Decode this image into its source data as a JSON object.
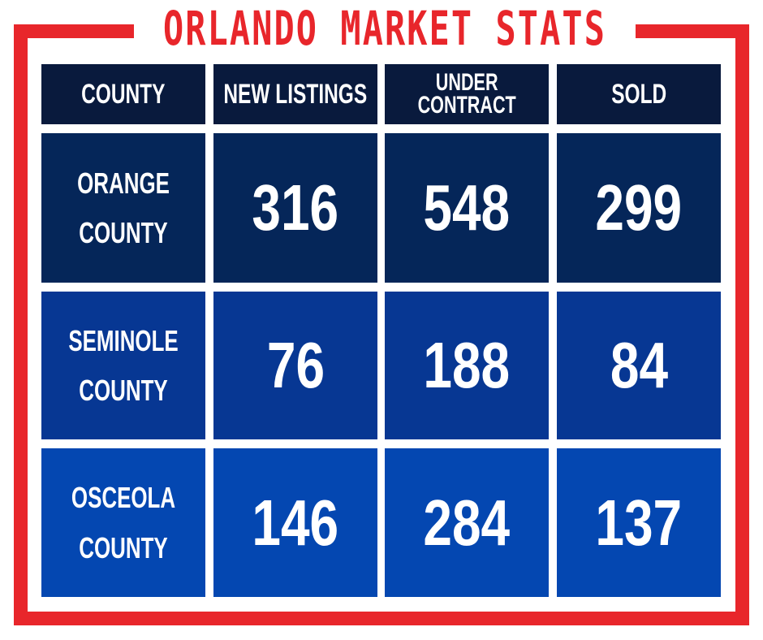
{
  "title": "ORLANDO MARKET STATS",
  "colors": {
    "frame": "#e8262b",
    "header": "#091a3d",
    "row1": "#052659",
    "row2": "#073793",
    "row3": "#0447b1",
    "text": "#ffffff"
  },
  "table": {
    "headers": [
      "COUNTY",
      "NEW LISTINGS",
      "UNDER CONTRACT",
      "SOLD"
    ],
    "header_lines": {
      "under_contract": [
        "UNDER",
        "CONTRACT"
      ]
    },
    "rows": [
      {
        "county_line1": "ORANGE",
        "county_line2": "COUNTY",
        "new_listings": "316",
        "under_contract": "548",
        "sold": "299"
      },
      {
        "county_line1": "SEMINOLE",
        "county_line2": "COUNTY",
        "new_listings": "76",
        "under_contract": "188",
        "sold": "84"
      },
      {
        "county_line1": "OSCEOLA",
        "county_line2": "COUNTY",
        "new_listings": "146",
        "under_contract": "284",
        "sold": "137"
      }
    ]
  }
}
